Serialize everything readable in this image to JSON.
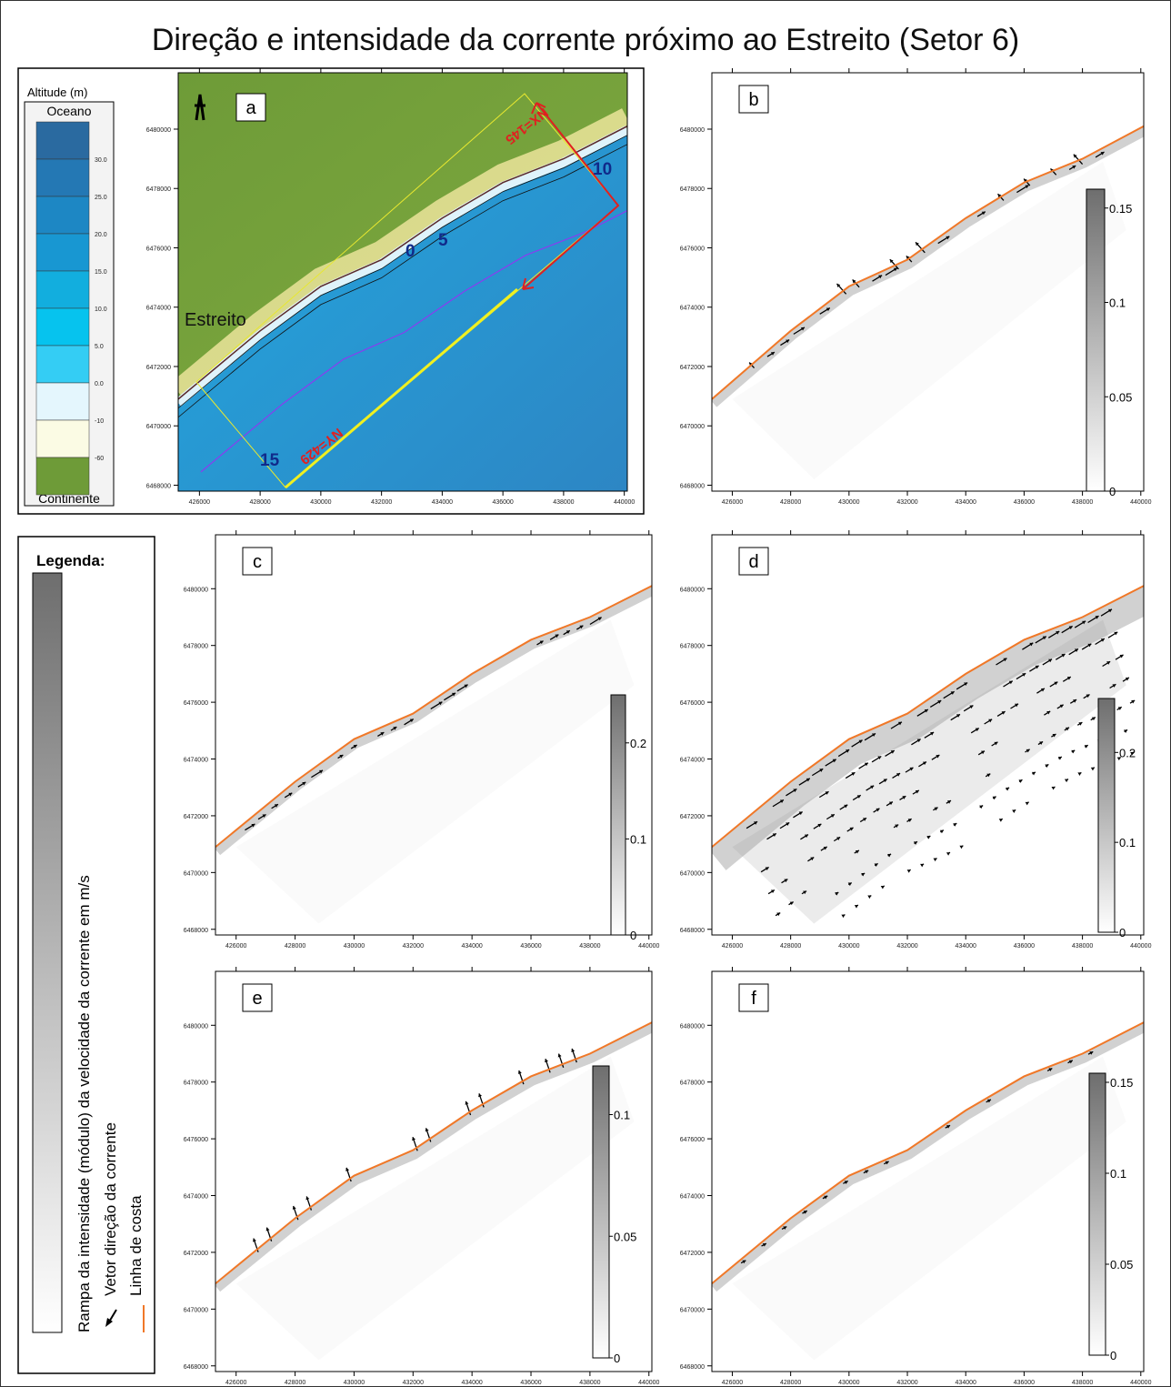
{
  "title": "Direção e intensidade da corrente próximo ao Estreito (Setor 6)",
  "map_extent": {
    "xlim": [
      425300,
      440100
    ],
    "ylim": [
      6467800,
      6481900
    ]
  },
  "x_ticks": [
    426000,
    428000,
    430000,
    432000,
    434000,
    436000,
    438000,
    440000
  ],
  "y_ticks": [
    6468000,
    6470000,
    6472000,
    6474000,
    6476000,
    6478000,
    6480000
  ],
  "altitude_legend": {
    "title": "Altitude (m)",
    "top": "Oceano",
    "bottom": "Continente",
    "labels": [
      "30.0",
      "25.0",
      "20.0",
      "15.0",
      "10.0",
      "5.0",
      "0.0",
      "-10",
      "-60"
    ]
  },
  "panel_a": {
    "label": "a",
    "place": "Estreito",
    "nx": "NX=145",
    "ny": "NY=429",
    "contours": [
      "0",
      "5",
      "10",
      "15"
    ]
  },
  "panels": [
    {
      "label": "b",
      "colorbar": {
        "lim": [
          0,
          0.16
        ],
        "ticks": [
          0,
          0.05,
          0.1,
          0.15
        ]
      }
    },
    {
      "label": "c",
      "colorbar": {
        "lim": [
          0,
          0.25
        ],
        "ticks": [
          0,
          0.1,
          0.2
        ]
      }
    },
    {
      "label": "d",
      "colorbar": {
        "lim": [
          0,
          0.26
        ],
        "ticks": [
          0,
          0.1,
          0.2
        ]
      }
    },
    {
      "label": "e",
      "colorbar": {
        "lim": [
          0,
          0.12
        ],
        "ticks": [
          0,
          0.05,
          0.1
        ]
      }
    },
    {
      "label": "f",
      "colorbar": {
        "lim": [
          0,
          0.155
        ],
        "ticks": [
          0,
          0.05,
          0.1,
          0.15
        ]
      }
    }
  ],
  "legend": {
    "title": "Legenda:",
    "ramp": "Rampa da intensidade (módulo) da velocidade da corrente em m/s",
    "vector": "Vetor direção da corrente",
    "coast": "Linha de costa"
  }
}
